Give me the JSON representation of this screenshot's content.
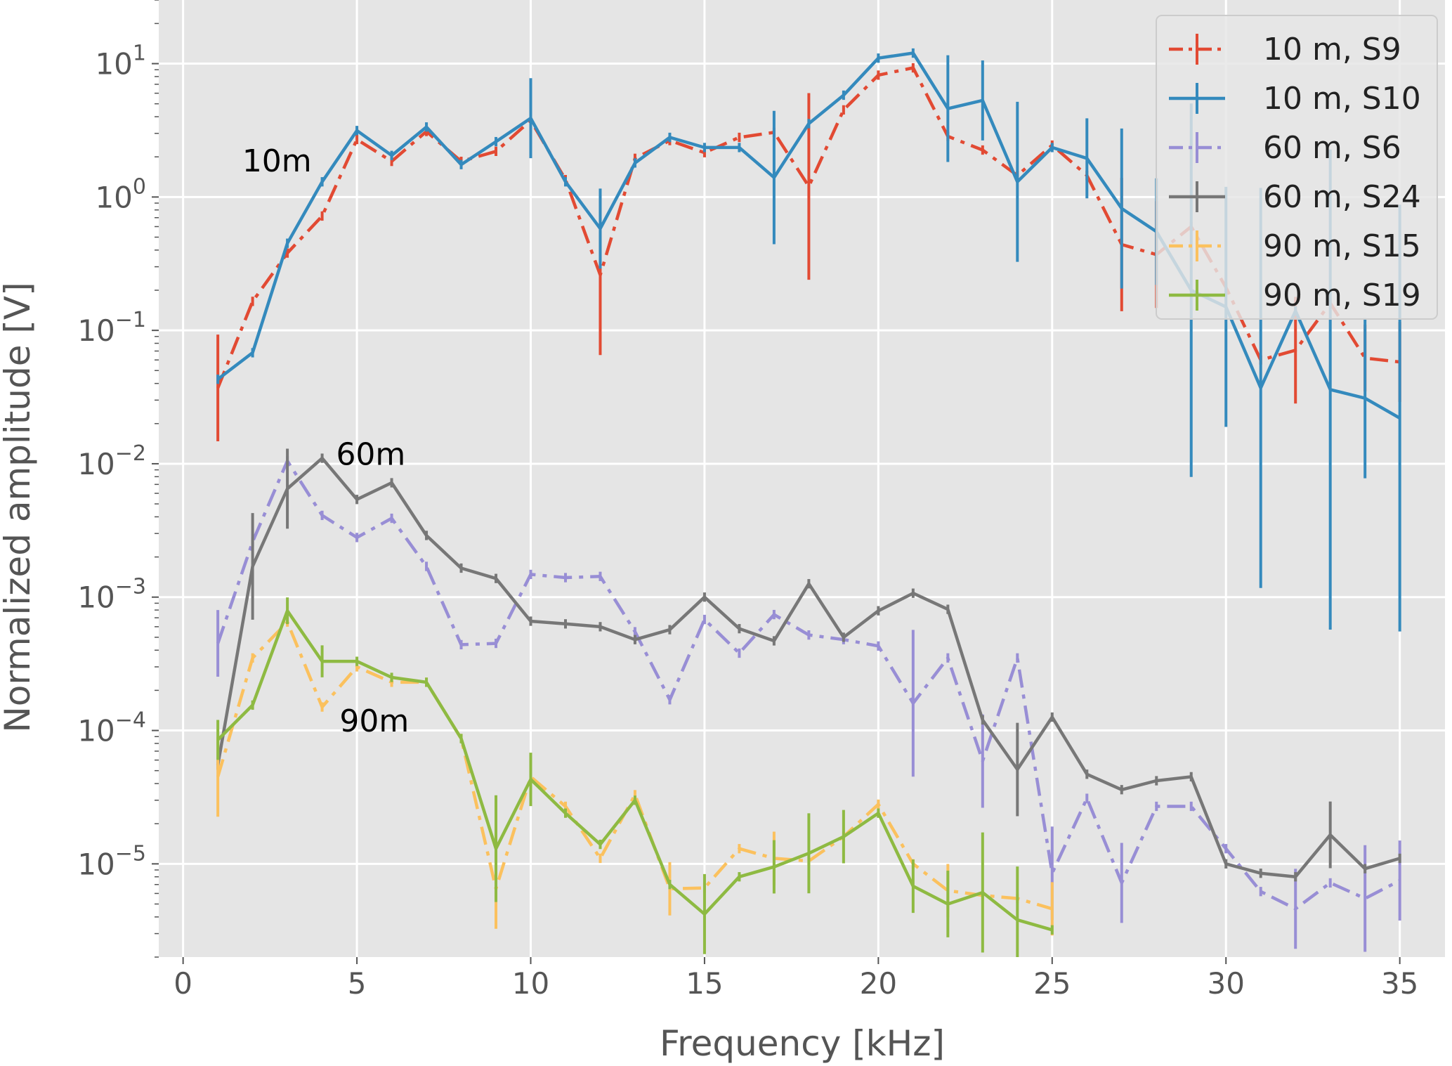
{
  "chart_data": {
    "type": "line",
    "title": "",
    "xlabel": "Frequency [kHz]",
    "ylabel": "Normalized amplitude [V]",
    "xlim": [
      -0.7,
      36.3
    ],
    "ylim": [
      2e-06,
      30
    ],
    "yscale": "log",
    "grid": true,
    "legend_position": "top-right",
    "x_ticks": [
      {
        "value": 0,
        "label": "0"
      },
      {
        "value": 5,
        "label": "5"
      },
      {
        "value": 10,
        "label": "10"
      },
      {
        "value": 15,
        "label": "15"
      },
      {
        "value": 20,
        "label": "20"
      },
      {
        "value": 25,
        "label": "25"
      },
      {
        "value": 30,
        "label": "30"
      },
      {
        "value": 35,
        "label": "35"
      }
    ],
    "y_ticks": [
      {
        "value": 10,
        "base": "10",
        "exp": "1"
      },
      {
        "value": 1,
        "base": "10",
        "exp": "0"
      },
      {
        "value": 0.1,
        "base": "10",
        "exp": "−1"
      },
      {
        "value": 0.01,
        "base": "10",
        "exp": "−2"
      },
      {
        "value": 0.001,
        "base": "10",
        "exp": "−3"
      },
      {
        "value": 0.0001,
        "base": "10",
        "exp": "−4"
      },
      {
        "value": 1e-05,
        "base": "10",
        "exp": "−5"
      }
    ],
    "annotations": [
      {
        "text": "10m",
        "x": 2.7,
        "y": 1.55
      },
      {
        "text": "60m",
        "x": 5.4,
        "y": 0.0098
      },
      {
        "text": "90m",
        "x": 5.5,
        "y": 9.8e-05
      }
    ],
    "series": [
      {
        "name": "10 m, S9",
        "color": "#E24A33",
        "dash": "dashdot",
        "x": [
          1,
          2,
          3,
          4,
          5,
          6,
          7,
          8,
          9,
          10,
          11,
          12,
          13,
          14,
          15,
          16,
          17,
          18,
          19,
          20,
          21,
          22,
          23,
          24,
          25,
          26,
          27,
          28,
          29,
          30,
          31,
          32,
          33,
          34,
          35
        ],
        "y": [
          0.037,
          0.165,
          0.38,
          0.72,
          2.7,
          1.85,
          3.1,
          1.85,
          2.2,
          3.75,
          1.35,
          0.26,
          1.95,
          2.65,
          2.15,
          2.8,
          3.05,
          1.2,
          4.5,
          8.2,
          9.3,
          2.85,
          2.25,
          1.45,
          2.45,
          1.45,
          0.44,
          0.37,
          0.6,
          0.21,
          0.06,
          0.071,
          0.16,
          0.062,
          0.058
        ],
        "err": [
          0.4,
          0,
          0,
          0,
          0,
          0,
          0,
          0,
          0,
          0,
          0,
          0.6,
          0,
          0,
          0,
          0,
          0,
          0.7,
          0,
          0,
          0,
          0,
          0,
          0,
          0,
          0,
          0.5,
          0.4,
          0,
          0,
          0,
          0.4,
          0,
          0.25,
          0.3
        ]
      },
      {
        "name": "10 m, S10",
        "color": "#348ABD",
        "dash": "solid",
        "x": [
          1,
          2,
          3,
          4,
          5,
          6,
          7,
          8,
          9,
          10,
          11,
          12,
          13,
          14,
          15,
          16,
          17,
          18,
          19,
          20,
          21,
          22,
          23,
          24,
          25,
          26,
          27,
          28,
          29,
          30,
          31,
          32,
          33,
          34,
          35
        ],
        "y": [
          0.043,
          0.068,
          0.45,
          1.3,
          3.15,
          2.05,
          3.35,
          1.75,
          2.6,
          3.9,
          1.3,
          0.58,
          1.8,
          2.8,
          2.35,
          2.35,
          1.4,
          3.55,
          5.8,
          11.0,
          12.0,
          4.6,
          5.3,
          1.3,
          2.35,
          1.95,
          0.82,
          0.55,
          0.2,
          0.15,
          0.037,
          0.14,
          0.036,
          0.031,
          0.022
        ],
        "err": [
          0,
          0,
          0,
          0,
          0,
          0,
          0,
          0,
          0,
          0.3,
          0,
          0.3,
          0,
          0,
          0,
          0,
          0.5,
          0,
          0,
          0,
          0,
          0.4,
          0.3,
          0.6,
          0,
          0.3,
          0.6,
          0.4,
          1.4,
          0.9,
          1.5,
          0,
          1.8,
          0.6,
          1.6
        ]
      },
      {
        "name": "60 m, S6",
        "color": "#988ED5",
        "dash": "dashdot",
        "x": [
          1,
          2,
          3,
          4,
          5,
          6,
          7,
          8,
          9,
          10,
          11,
          12,
          13,
          14,
          15,
          16,
          17,
          18,
          19,
          20,
          21,
          22,
          23,
          24,
          25,
          26,
          27,
          28,
          29,
          30,
          31,
          32,
          33,
          34,
          35
        ],
        "y": [
          0.00045,
          0.0026,
          0.0105,
          0.0041,
          0.0028,
          0.0039,
          0.0017,
          0.00044,
          0.00045,
          0.00148,
          0.0014,
          0.00143,
          0.00055,
          0.00017,
          0.00068,
          0.00038,
          0.00074,
          0.00052,
          0.00048,
          0.00043,
          0.00016,
          0.00035,
          5.9e-05,
          0.00035,
          8.5e-06,
          3.1e-05,
          7.2e-06,
          2.7e-05,
          2.7e-05,
          1.3e-05,
          6.2e-06,
          4.6e-06,
          7.2e-06,
          5.5e-06,
          7.5e-06
        ],
        "err": [
          0.25,
          0,
          0,
          0,
          0,
          0,
          0,
          0,
          0,
          0,
          0,
          0,
          0,
          0,
          0,
          0,
          0,
          0,
          0,
          0,
          0.55,
          0,
          0.35,
          0,
          0.35,
          0,
          0.3,
          0,
          0,
          0,
          0,
          0.3,
          0,
          0.4,
          0.3
        ]
      },
      {
        "name": "60 m, S24",
        "color": "#777777",
        "dash": "solid",
        "x": [
          1,
          2,
          3,
          4,
          5,
          6,
          7,
          8,
          9,
          10,
          11,
          12,
          13,
          14,
          15,
          16,
          17,
          18,
          19,
          20,
          21,
          22,
          23,
          24,
          25,
          26,
          27,
          28,
          29,
          30,
          31,
          32,
          33,
          34,
          35
        ],
        "y": [
          5.5e-05,
          0.0017,
          0.0065,
          0.011,
          0.0054,
          0.0072,
          0.0029,
          0.00165,
          0.00138,
          0.00066,
          0.00063,
          0.0006,
          0.00048,
          0.00057,
          0.001,
          0.00058,
          0.00047,
          0.00126,
          0.0005,
          0.00079,
          0.00107,
          0.00081,
          0.00012,
          5.1e-05,
          0.000126,
          4.7e-05,
          3.6e-05,
          4.2e-05,
          4.5e-05,
          1e-05,
          8.5e-06,
          8e-06,
          1.65e-05,
          9.2e-06,
          1.1e-05
        ],
        "err": [
          0,
          0.4,
          0.3,
          0,
          0,
          0,
          0,
          0,
          0,
          0,
          0,
          0,
          0,
          0,
          0,
          0,
          0,
          0,
          0,
          0,
          0,
          0,
          0,
          0.35,
          0,
          0,
          0,
          0,
          0,
          0,
          0,
          0,
          0.25,
          0,
          0
        ]
      },
      {
        "name": "90 m, S15",
        "color": "#FBC15E",
        "dash": "dashdot",
        "x": [
          1,
          2,
          3,
          4,
          5,
          6,
          7,
          8,
          9,
          10,
          11,
          12,
          13,
          14,
          15,
          16,
          17,
          18,
          19,
          20,
          21,
          22,
          23,
          24,
          25
        ],
        "y": [
          4.5e-05,
          0.00035,
          0.00065,
          0.00015,
          0.0003,
          0.00023,
          0.00023,
          8.7e-05,
          6.5e-06,
          4.5e-05,
          2.7e-05,
          1.1e-05,
          3.3e-05,
          6.5e-06,
          6.6e-06,
          1.3e-05,
          1.1e-05,
          1.05e-05,
          1.6e-05,
          2.8e-05,
          1e-05,
          6.3e-06,
          5.8e-06,
          5.5e-06,
          4.6e-06
        ],
        "err": [
          0.3,
          0,
          0,
          0,
          0,
          0,
          0,
          0,
          0.3,
          0,
          0,
          0,
          0,
          0.2,
          0,
          0,
          0.2,
          0,
          0,
          0,
          0,
          0.2,
          0,
          0,
          0.2
        ]
      },
      {
        "name": "90 m, S19",
        "color": "#8EBA42",
        "dash": "solid",
        "x": [
          1,
          2,
          3,
          4,
          5,
          6,
          7,
          8,
          9,
          10,
          11,
          12,
          13,
          14,
          15,
          16,
          17,
          18,
          19,
          20,
          21,
          22,
          23,
          24,
          25
        ],
        "y": [
          8.5e-05,
          0.000155,
          0.00079,
          0.00033,
          0.00033,
          0.00025,
          0.00023,
          8.7e-05,
          1.3e-05,
          4.3e-05,
          2.4e-05,
          1.4e-05,
          3e-05,
          7e-06,
          4.2e-06,
          8e-06,
          9.5e-06,
          1.2e-05,
          1.6e-05,
          2.4e-05,
          6.8e-06,
          5e-06,
          6.1e-06,
          3.8e-06,
          3.2e-06
        ],
        "err": [
          0.15,
          0,
          0.1,
          0.12,
          0,
          0,
          0,
          0,
          0.4,
          0.2,
          0,
          0,
          0,
          0,
          0.3,
          0,
          0.2,
          0.3,
          0.2,
          0,
          0.2,
          0.25,
          0.45,
          0.4,
          0
        ]
      }
    ]
  }
}
